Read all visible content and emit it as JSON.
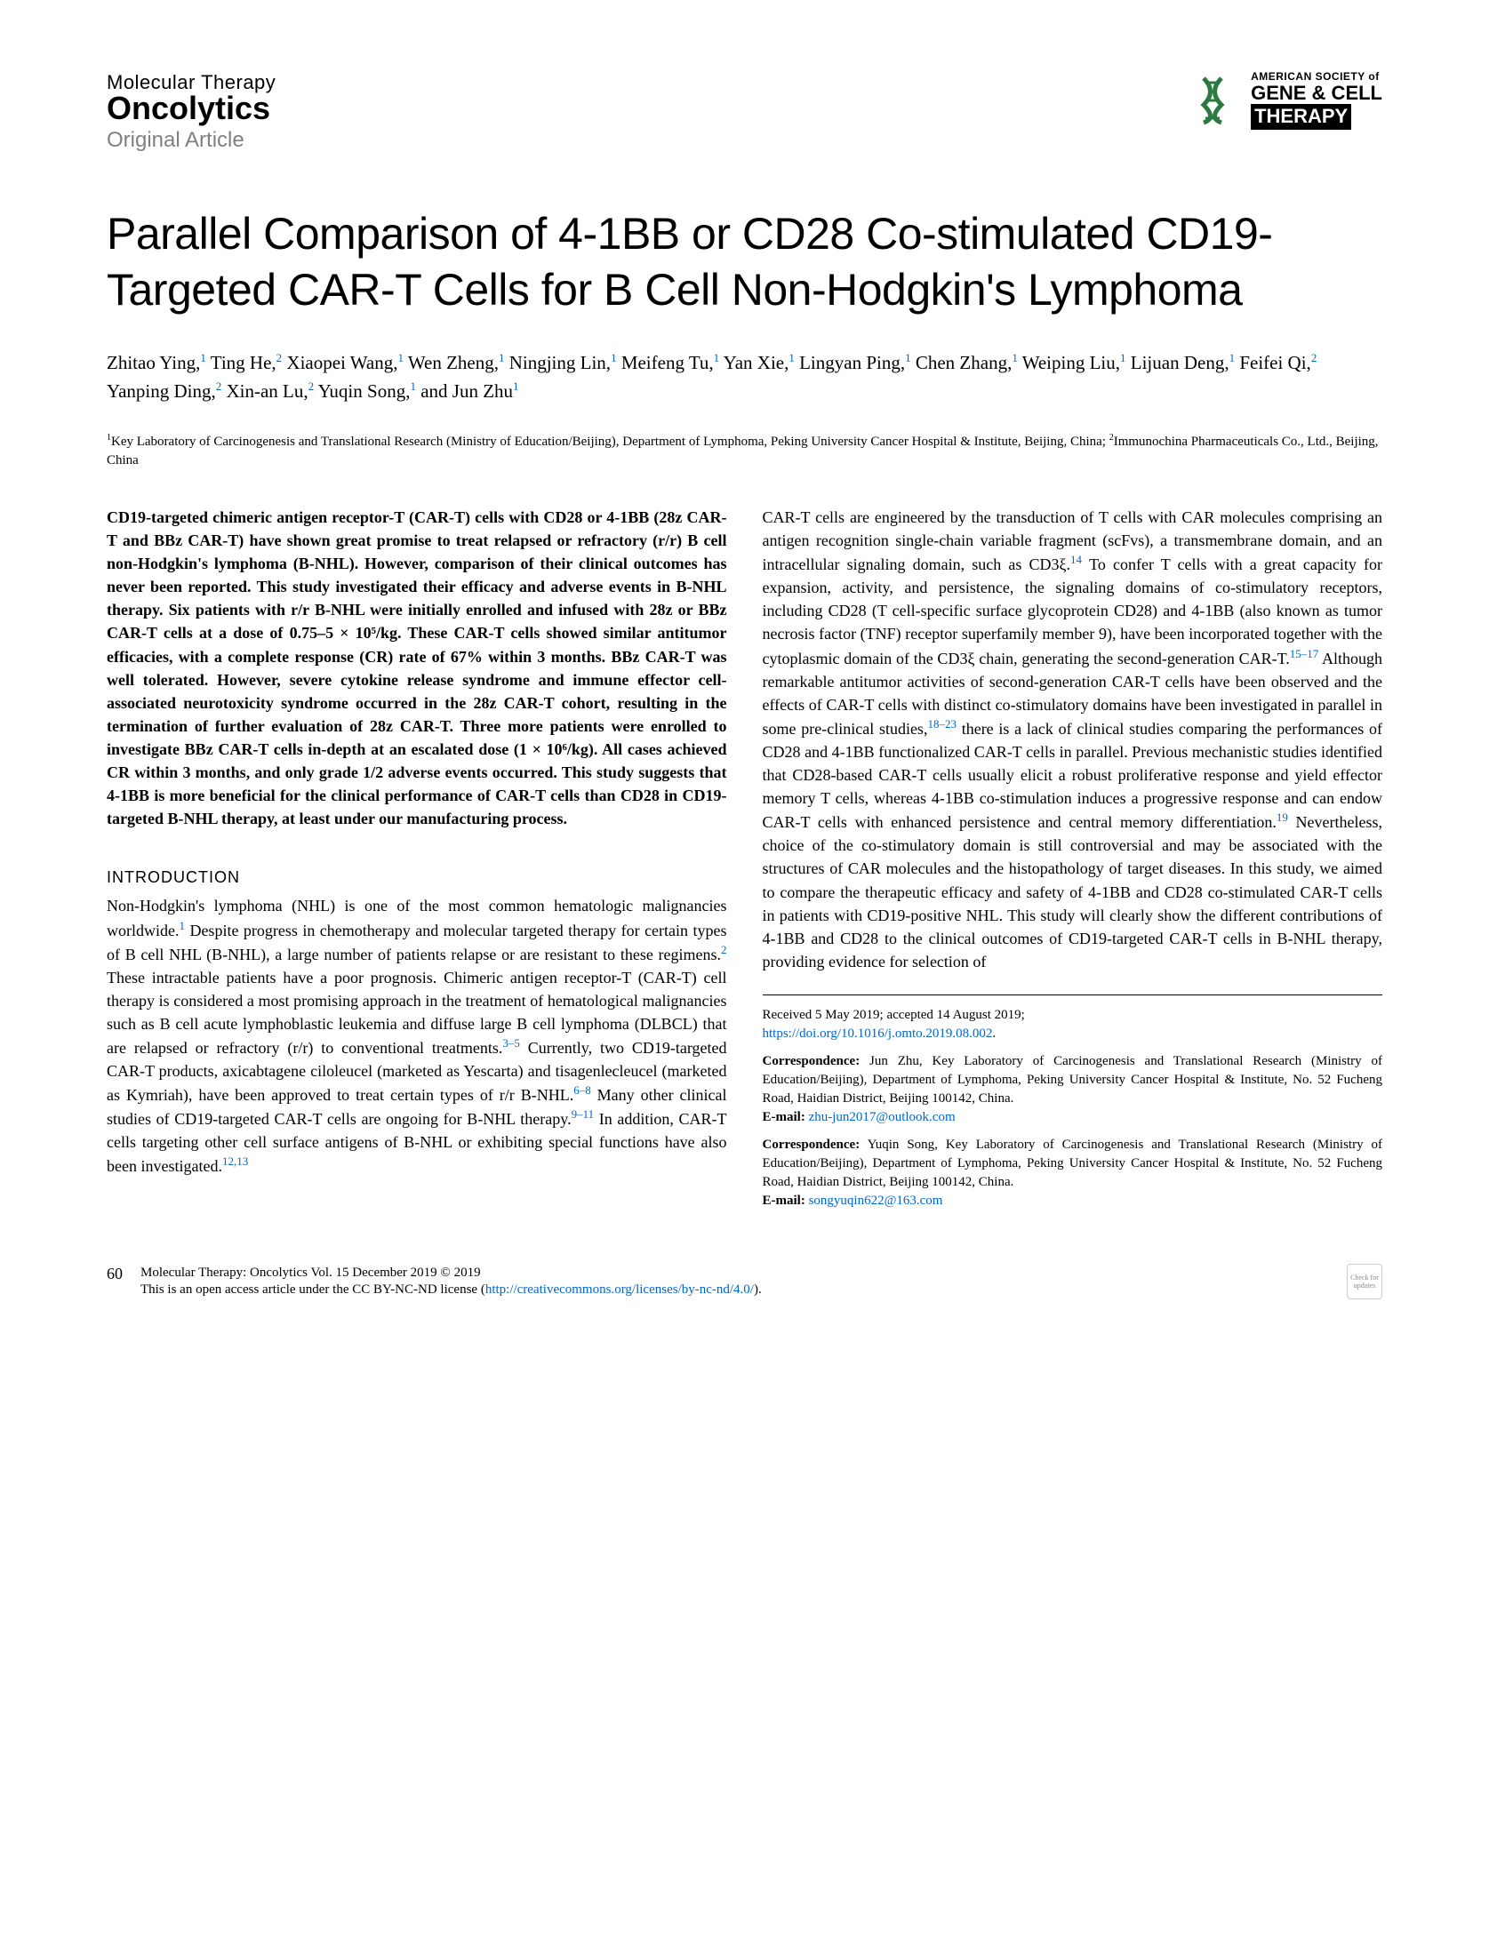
{
  "header": {
    "journal_line1": "Molecular Therapy",
    "journal_line2": "Oncolytics",
    "article_type": "Original Article",
    "society_small": "AMERICAN SOCIETY of",
    "society_line1": "GENE & CELL",
    "society_line2": "THERAPY"
  },
  "title": "Parallel Comparison of 4-1BB or CD28 Co-stimulated CD19-Targeted CAR-T Cells for B Cell Non-Hodgkin's Lymphoma",
  "authors_html": "Zhitao Ying,<sup>1</sup> Ting He,<sup>2</sup> Xiaopei Wang,<sup>1</sup> Wen Zheng,<sup>1</sup> Ningjing Lin,<sup>1</sup> Meifeng Tu,<sup>1</sup> Yan Xie,<sup>1</sup> Lingyan Ping,<sup>1</sup> Chen Zhang,<sup>1</sup> Weiping Liu,<sup>1</sup> Lijuan Deng,<sup>1</sup> Feifei Qi,<sup>2</sup> Yanping Ding,<sup>2</sup> Xin-an Lu,<sup>2</sup> Yuqin Song,<sup>1</sup> and Jun Zhu<sup>1</sup>",
  "affiliations_html": "<sup>1</sup>Key Laboratory of Carcinogenesis and Translational Research (Ministry of Education/Beijing), Department of Lymphoma, Peking University Cancer Hospital & Institute, Beijing, China; <sup>2</sup>Immunochina Pharmaceuticals Co., Ltd., Beijing, China",
  "abstract": "CD19-targeted chimeric antigen receptor-T (CAR-T) cells with CD28 or 4-1BB (28z CAR-T and BBz CAR-T) have shown great promise to treat relapsed or refractory (r/r) B cell non-Hodgkin's lymphoma (B-NHL). However, comparison of their clinical outcomes has never been reported. This study investigated their efficacy and adverse events in B-NHL therapy. Six patients with r/r B-NHL were initially enrolled and infused with 28z or BBz CAR-T cells at a dose of 0.75–5 × 10⁵/kg. These CAR-T cells showed similar antitumor efficacies, with a complete response (CR) rate of 67% within 3 months. BBz CAR-T was well tolerated. However, severe cytokine release syndrome and immune effector cell-associated neurotoxicity syndrome occurred in the 28z CAR-T cohort, resulting in the termination of further evaluation of 28z CAR-T. Three more patients were enrolled to investigate BBz CAR-T cells in-depth at an escalated dose (1 × 10⁶/kg). All cases achieved CR within 3 months, and only grade 1/2 adverse events occurred. This study suggests that 4-1BB is more beneficial for the clinical performance of CAR-T cells than CD28 in CD19-targeted B-NHL therapy, at least under our manufacturing process.",
  "intro_heading": "INTRODUCTION",
  "intro_text_html": "Non-Hodgkin's lymphoma (NHL) is one of the most common hematologic malignancies worldwide.<span class='ref-link'>1</span> Despite progress in chemotherapy and molecular targeted therapy for certain types of B cell NHL (B-NHL), a large number of patients relapse or are resistant to these regimens.<span class='ref-link'>2</span> These intractable patients have a poor prognosis. Chimeric antigen receptor-T (CAR-T) cell therapy is considered a most promising approach in the treatment of hematological malignancies such as B cell acute lymphoblastic leukemia and diffuse large B cell lymphoma (DLBCL) that are relapsed or refractory (r/r) to conventional treatments.<span class='ref-link'>3–5</span> Currently, two CD19-targeted CAR-T products, axicabtagene ciloleucel (marketed as Yescarta) and tisagenlecleucel (marketed as Kymriah), have been approved to treat certain types of r/r B-NHL.<span class='ref-link'>6–8</span> Many other clinical studies of CD19-targeted CAR-T cells are ongoing for B-NHL therapy.<span class='ref-link'>9–11</span> In addition, CAR-T cells targeting other cell surface antigens of B-NHL or exhibiting special functions have also been investigated.<span class='ref-link'>12,13</span>",
  "col2_text_html": "CAR-T cells are engineered by the transduction of T cells with CAR molecules comprising an antigen recognition single-chain variable fragment (scFvs), a transmembrane domain, and an intracellular signaling domain, such as CD3ξ.<span class='ref-link'>14</span> To confer T cells with a great capacity for expansion, activity, and persistence, the signaling domains of co-stimulatory receptors, including CD28 (T cell-specific surface glycoprotein CD28) and 4-1BB (also known as tumor necrosis factor (TNF) receptor superfamily member 9), have been incorporated together with the cytoplasmic domain of the CD3ξ chain, generating the second-generation CAR-T.<span class='ref-link'>15–17</span> Although remarkable antitumor activities of second-generation CAR-T cells have been observed and the effects of CAR-T cells with distinct co-stimulatory domains have been investigated in parallel in some pre-clinical studies,<span class='ref-link'>18–23</span> there is a lack of clinical studies comparing the performances of CD28 and 4-1BB functionalized CAR-T cells in parallel. Previous mechanistic studies identified that CD28-based CAR-T cells usually elicit a robust proliferative response and yield effector memory T cells, whereas 4-1BB co-stimulation induces a progressive response and can endow CAR-T cells with enhanced persistence and central memory differentiation.<span class='ref-link'>19</span> Nevertheless, choice of the co-stimulatory domain is still controversial and may be associated with the structures of CAR molecules and the histopathology of target diseases. In this study, we aimed to compare the therapeutic efficacy and safety of 4-1BB and CD28 co-stimulated CAR-T cells in patients with CD19-positive NHL. This study will clearly show the different contributions of 4-1BB and CD28 to the clinical outcomes of CD19-targeted CAR-T cells in B-NHL therapy, providing evidence for selection of",
  "received": "Received 5 May 2019; accepted 14 August 2019;",
  "doi": "https://doi.org/10.1016/j.omto.2019.08.002",
  "corr1_label": "Correspondence:",
  "corr1_text": " Jun Zhu, Key Laboratory of Carcinogenesis and Translational Research (Ministry of Education/Beijing), Department of Lymphoma, Peking University Cancer Hospital & Institute, No. 52 Fucheng Road, Haidian District, Beijing 100142, China.",
  "email1_label": "E-mail: ",
  "email1": "zhu-jun2017@outlook.com",
  "corr2_label": "Correspondence:",
  "corr2_text": " Yuqin Song, Key Laboratory of Carcinogenesis and Translational Research (Ministry of Education/Beijing), Department of Lymphoma, Peking University Cancer Hospital & Institute, No. 52 Fucheng Road, Haidian District, Beijing 100142, China.",
  "email2_label": "E-mail: ",
  "email2": "songyuqin622@163.com",
  "footer": {
    "page": "60",
    "citation": "Molecular Therapy: Oncolytics Vol. 15 December 2019 © 2019",
    "license_text": "This is an open access article under the CC BY-NC-ND license (",
    "license_url": "http://creativecommons.org/licenses/by-nc-nd/4.0/",
    "license_close": ").",
    "crossmark": "Check for updates"
  }
}
